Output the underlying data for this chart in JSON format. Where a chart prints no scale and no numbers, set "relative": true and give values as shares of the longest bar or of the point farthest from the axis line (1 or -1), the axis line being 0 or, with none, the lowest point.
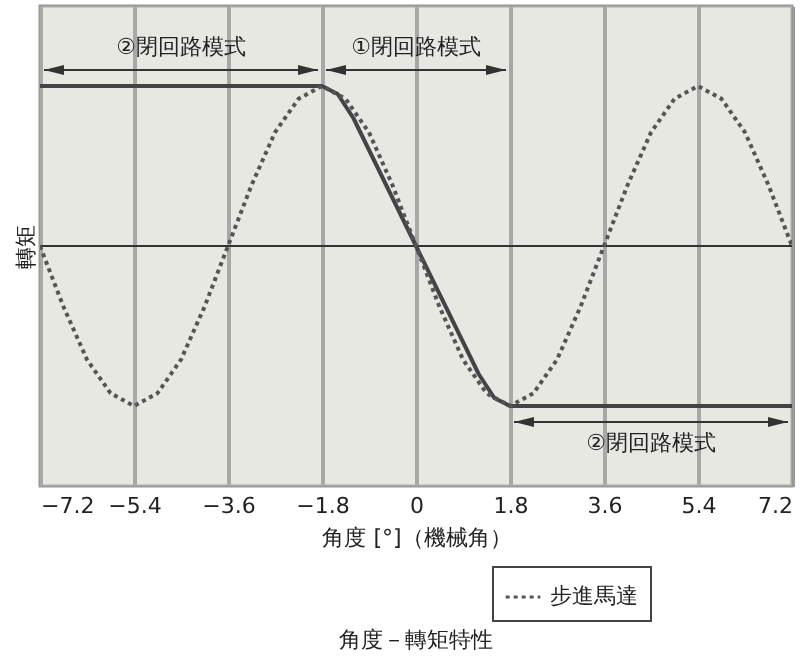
{
  "chart_data": {
    "type": "line",
    "title": "角度－轉矩特性",
    "xlabel": "角度 [°]（機械角）",
    "ylabel": "轉矩",
    "relative": true,
    "xlim": [
      -7.2,
      7.2
    ],
    "xticks": [
      -7.2,
      -5.4,
      -3.6,
      -1.8,
      0,
      1.8,
      3.6,
      5.4,
      7.2
    ],
    "grid": "x",
    "legend": "bottom right",
    "x": [
      -7.2,
      -6.75,
      -6.3,
      -5.85,
      -5.4,
      -4.95,
      -4.5,
      -4.05,
      -3.6,
      -3.15,
      -2.7,
      -2.25,
      -1.8,
      -1.35,
      -0.9,
      -0.45,
      0,
      0.45,
      0.9,
      1.35,
      1.8,
      2.25,
      2.7,
      3.15,
      3.6,
      4.05,
      4.5,
      4.95,
      5.4,
      5.85,
      6.3,
      6.75,
      7.2
    ],
    "series": [
      {
        "color": "#444444",
        "line_style": "solid",
        "x": [
          -7.2,
          -1.8,
          -1.5,
          -1.2,
          0,
          1.2,
          1.5,
          1.8,
          7.2
        ],
        "values": [
          1,
          1,
          0.95,
          0.8,
          0,
          -0.8,
          -0.95,
          -1,
          -1
        ]
      },
      {
        "name": "步進馬達",
        "color": "#555555",
        "line_style": "dotted",
        "values": [
          0,
          -0.38,
          -0.71,
          -0.92,
          -1,
          -0.92,
          -0.71,
          -0.38,
          0,
          0.38,
          0.71,
          0.92,
          1,
          0.92,
          0.71,
          0.38,
          0,
          -0.38,
          -0.71,
          -0.92,
          -1,
          -0.92,
          -0.71,
          -0.38,
          0,
          0.38,
          0.71,
          0.92,
          1,
          0.92,
          0.71,
          0.38,
          0
        ]
      }
    ],
    "bands": [
      {
        "axis": "x",
        "from": -7.2,
        "to": -1.8,
        "label": "②閉回路模式"
      },
      {
        "axis": "x",
        "from": -1.8,
        "to": 1.8,
        "label": "①閉回路模式"
      },
      {
        "axis": "x",
        "from": 1.8,
        "to": 7.2,
        "label": "②閉回路模式"
      }
    ]
  }
}
